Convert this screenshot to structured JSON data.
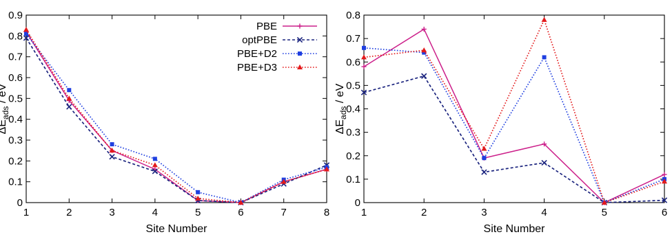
{
  "chart_data": [
    {
      "type": "line",
      "xlabel": "Site Number",
      "ylabel": "ΔE",
      "ylabel_sub": "ads",
      "ylabel_unit": " / eV",
      "xlim": [
        1,
        8
      ],
      "ylim": [
        0,
        0.9
      ],
      "x_ticks": [
        "1",
        "2",
        "3",
        "4",
        "5",
        "6",
        "7",
        "8"
      ],
      "y_ticks": [
        "0",
        "0.1",
        "0.2",
        "0.3",
        "0.4",
        "0.5",
        "0.6",
        "0.7",
        "0.8",
        "0.9"
      ],
      "legend": "top-right",
      "grid": false,
      "x": [
        1,
        2,
        3,
        4,
        5,
        6,
        7,
        8
      ],
      "series": [
        {
          "name": "PBE",
          "color": "#cc1f8a",
          "dash": "solid",
          "marker": "plus",
          "values": [
            0.82,
            0.49,
            0.25,
            0.16,
            0.01,
            0.0,
            0.1,
            0.16
          ]
        },
        {
          "name": "optPBE",
          "color": "#1a237e",
          "dash": "dashed",
          "marker": "x",
          "values": [
            0.79,
            0.46,
            0.22,
            0.15,
            0.01,
            0.0,
            0.09,
            0.18
          ]
        },
        {
          "name": "PBE+D2",
          "color": "#1f3fe0",
          "dash": "dotted",
          "marker": "square",
          "values": [
            0.81,
            0.54,
            0.28,
            0.21,
            0.05,
            0.0,
            0.11,
            0.17
          ]
        },
        {
          "name": "PBE+D3",
          "color": "#e31a1c",
          "dash": "dotted",
          "marker": "triangle",
          "values": [
            0.83,
            0.5,
            0.25,
            0.18,
            0.02,
            0.0,
            0.1,
            0.16
          ]
        }
      ]
    },
    {
      "type": "line",
      "xlabel": "Site Number",
      "ylabel": "ΔE",
      "ylabel_sub": "ads",
      "ylabel_unit": " / eV",
      "xlim": [
        1,
        6
      ],
      "ylim": [
        0,
        0.8
      ],
      "x_ticks": [
        "1",
        "2",
        "3",
        "4",
        "5",
        "6"
      ],
      "y_ticks": [
        "0",
        "0.1",
        "0.2",
        "0.3",
        "0.4",
        "0.5",
        "0.6",
        "0.7",
        "0.8"
      ],
      "grid": false,
      "x": [
        1,
        2,
        3,
        4,
        5,
        6
      ],
      "series": [
        {
          "color": "#cc1f8a",
          "dash": "solid",
          "marker": "plus",
          "values": [
            0.58,
            0.74,
            0.19,
            0.25,
            0.0,
            0.12
          ]
        },
        {
          "color": "#1a237e",
          "dash": "dashed",
          "marker": "x",
          "values": [
            0.47,
            0.54,
            0.13,
            0.17,
            0.0,
            0.01
          ]
        },
        {
          "color": "#1f3fe0",
          "dash": "dotted",
          "marker": "square",
          "values": [
            0.66,
            0.64,
            0.19,
            0.62,
            0.0,
            0.1
          ]
        },
        {
          "color": "#e31a1c",
          "dash": "dotted",
          "marker": "triangle",
          "values": [
            0.62,
            0.65,
            0.23,
            0.78,
            0.0,
            0.09
          ]
        }
      ]
    }
  ]
}
